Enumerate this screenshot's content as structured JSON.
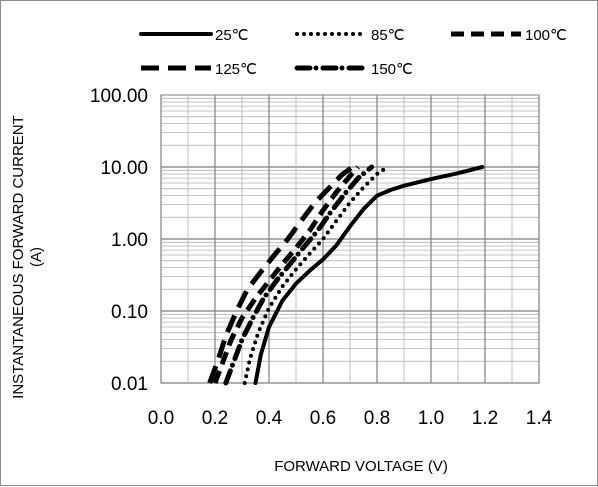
{
  "chart_data": {
    "type": "line",
    "title": "",
    "xlabel": "FORWARD VOLTAGE (V)",
    "ylabel_line1": "INSTANTANEOUS FORWARD CURRENT",
    "ylabel_line2": "(A)",
    "xlim": [
      0,
      1.4
    ],
    "ylim": [
      0.01,
      100
    ],
    "yscale": "log",
    "grid": true,
    "legend_position": "top",
    "xticks": [
      "0.0",
      "0.2",
      "0.4",
      "0.6",
      "0.8",
      "1.0",
      "1.2",
      "1.4"
    ],
    "yticks": [
      "0.01",
      "0.10",
      "1.00",
      "10.00",
      "100.00"
    ],
    "series": [
      {
        "name": "25℃",
        "style": "solid",
        "x": [
          0.35,
          0.37,
          0.4,
          0.45,
          0.5,
          0.55,
          0.6,
          0.65,
          0.7,
          0.75,
          0.8,
          0.85,
          0.9,
          1.0,
          1.1,
          1.19
        ],
        "y": [
          0.01,
          0.025,
          0.06,
          0.14,
          0.24,
          0.36,
          0.52,
          0.82,
          1.5,
          2.6,
          4.0,
          4.8,
          5.5,
          6.8,
          8.2,
          10.0
        ]
      },
      {
        "name": "85℃",
        "style": "dotted",
        "x": [
          0.31,
          0.33,
          0.36,
          0.4,
          0.45,
          0.5,
          0.55,
          0.6,
          0.65,
          0.7,
          0.75,
          0.8,
          0.83
        ],
        "y": [
          0.01,
          0.022,
          0.05,
          0.11,
          0.22,
          0.38,
          0.62,
          1.0,
          1.8,
          3.2,
          5.2,
          8.0,
          9.5
        ]
      },
      {
        "name": "100℃",
        "style": "dashed",
        "x": [
          0.2,
          0.23,
          0.26,
          0.3,
          0.35,
          0.4,
          0.45,
          0.5,
          0.55,
          0.6,
          0.65,
          0.7,
          0.73
        ],
        "y": [
          0.01,
          0.02,
          0.04,
          0.08,
          0.15,
          0.26,
          0.45,
          0.75,
          1.3,
          2.5,
          4.5,
          7.5,
          10.0
        ]
      },
      {
        "name": "125℃",
        "style": "long-dash",
        "x": [
          0.18,
          0.21,
          0.24,
          0.28,
          0.32,
          0.37,
          0.42,
          0.47,
          0.52,
          0.57,
          0.62,
          0.67,
          0.71
        ],
        "y": [
          0.01,
          0.02,
          0.045,
          0.1,
          0.2,
          0.35,
          0.6,
          1.0,
          1.8,
          3.2,
          5.0,
          7.8,
          10.0
        ]
      },
      {
        "name": "150℃",
        "style": "dash-dot",
        "x": [
          0.24,
          0.27,
          0.3,
          0.34,
          0.38,
          0.43,
          0.48,
          0.53,
          0.58,
          0.63,
          0.68,
          0.73,
          0.78
        ],
        "y": [
          0.01,
          0.02,
          0.04,
          0.08,
          0.15,
          0.27,
          0.46,
          0.78,
          1.3,
          2.4,
          4.2,
          7.0,
          10.0
        ]
      }
    ]
  }
}
